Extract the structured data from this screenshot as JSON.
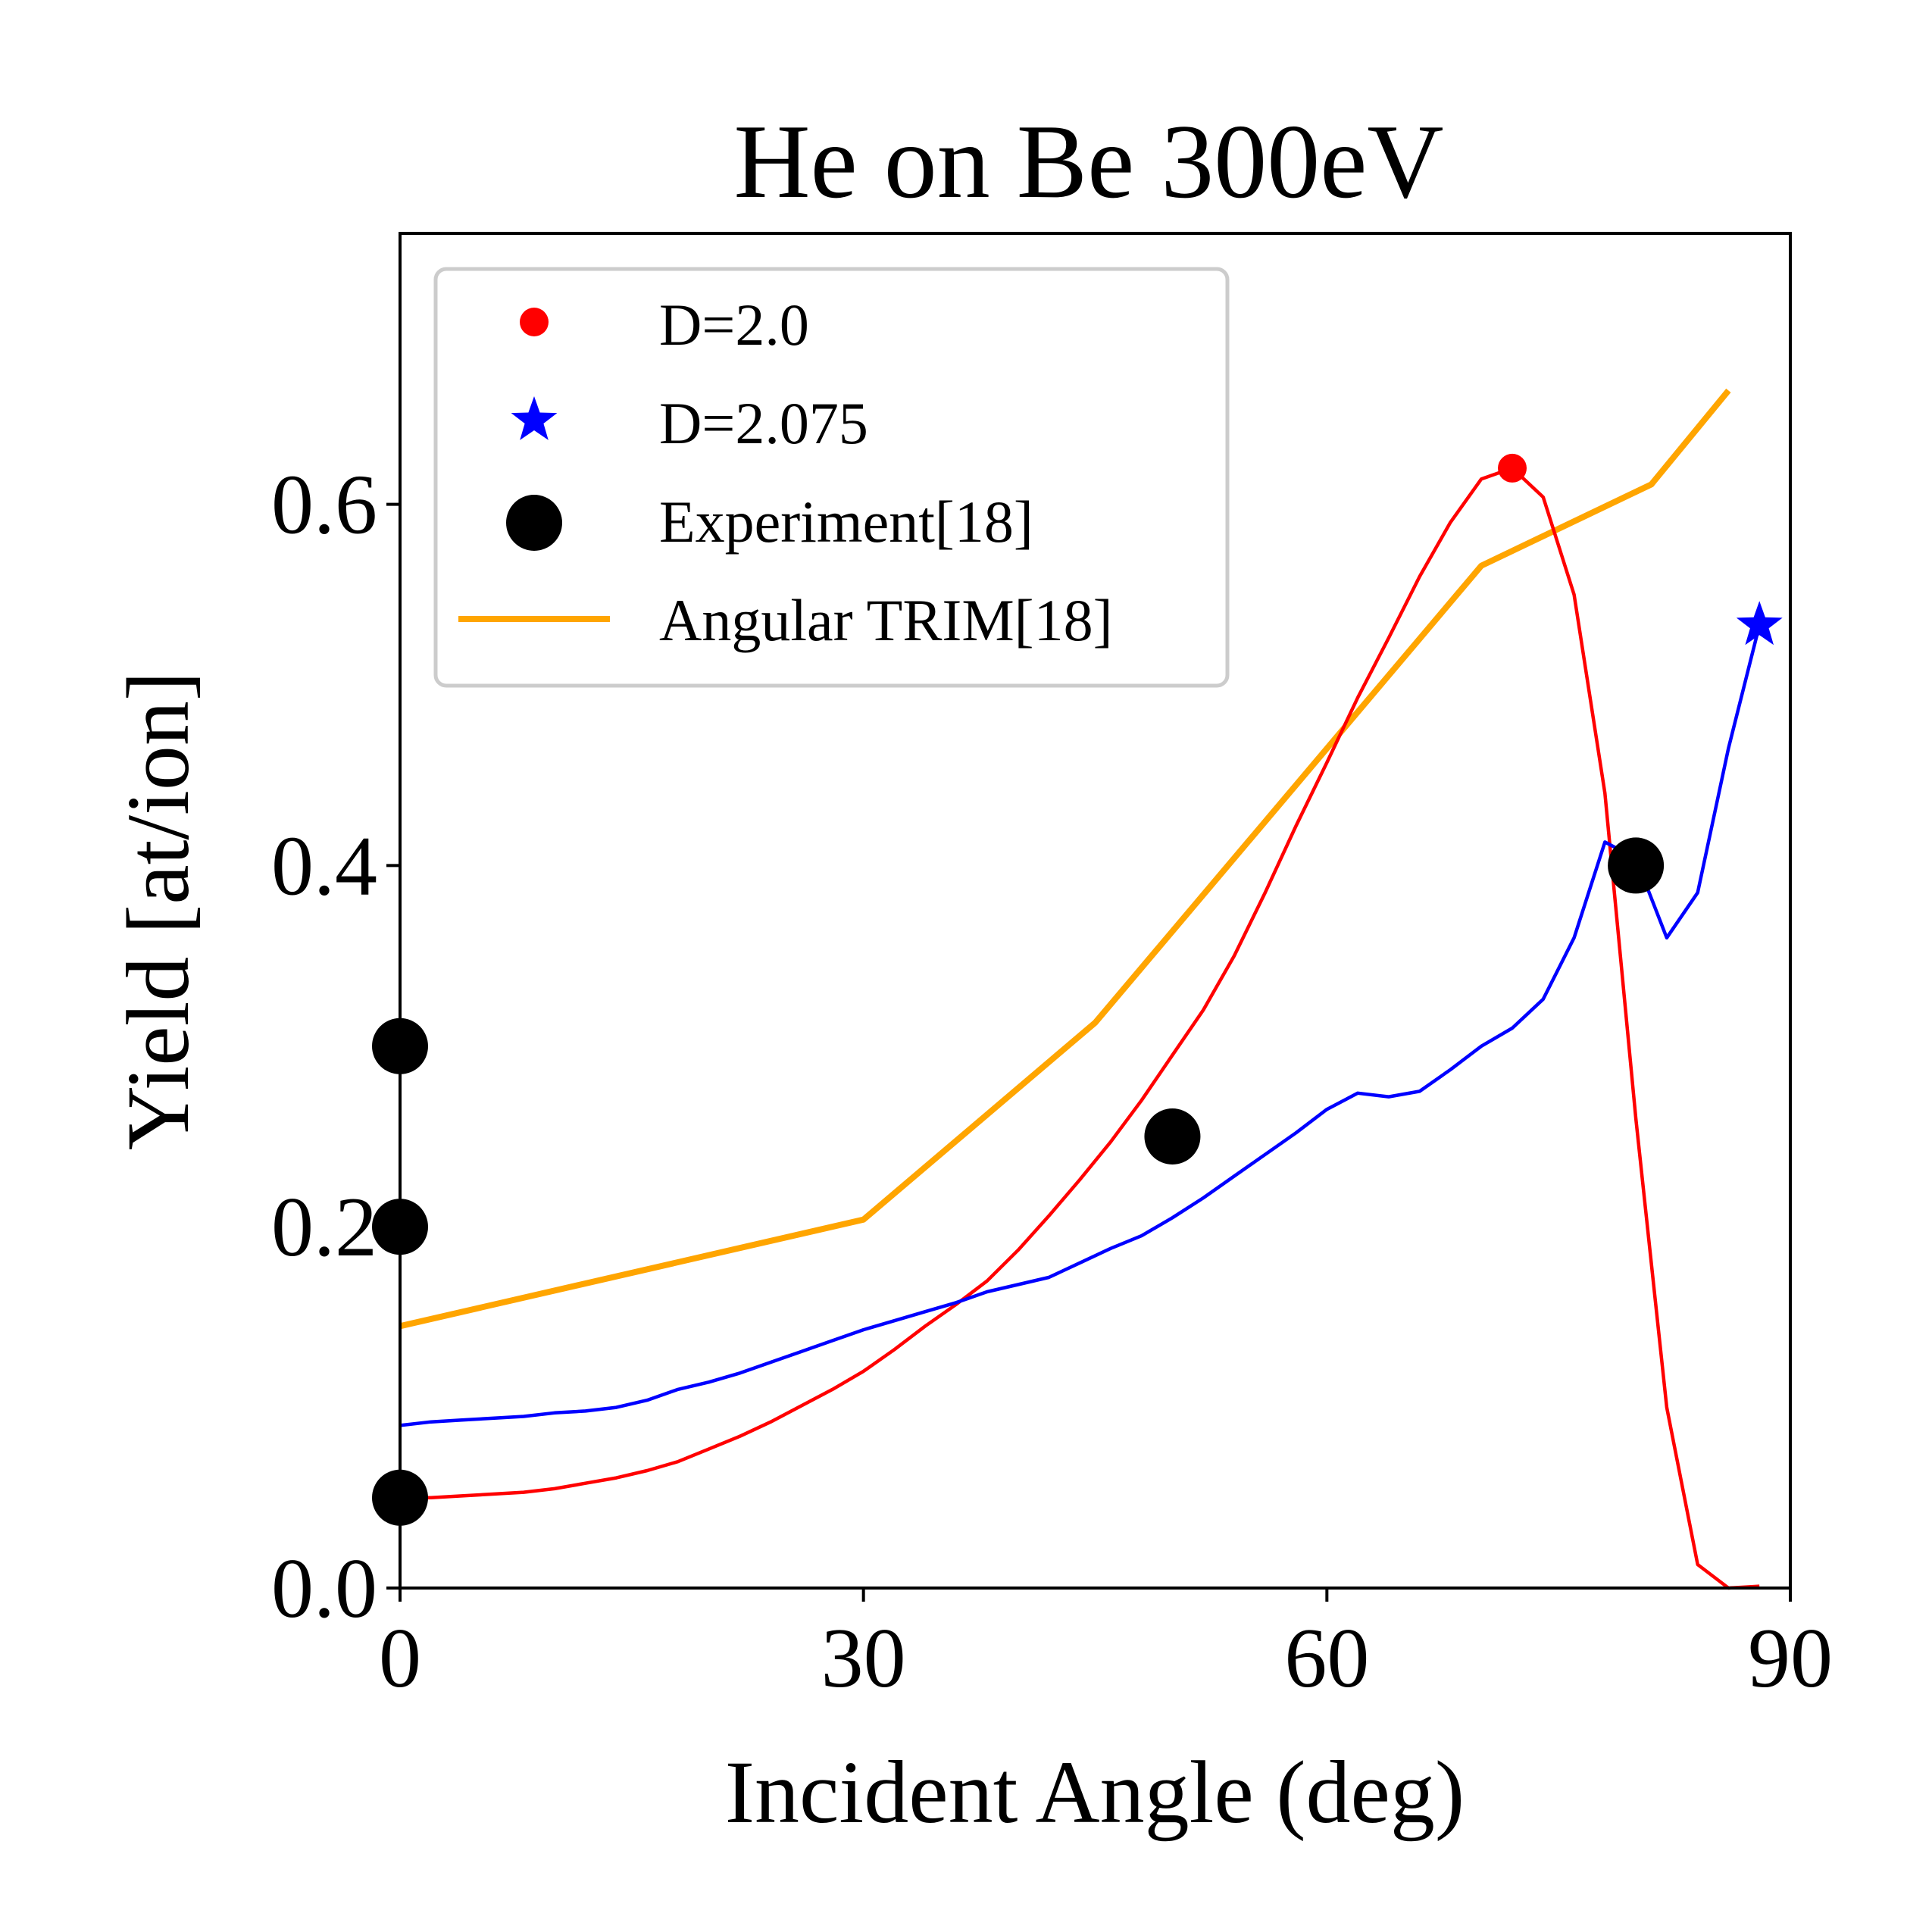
{
  "chart_data": {
    "type": "line",
    "title": "He on Be 300eV",
    "xlabel": "Incident Angle (deg)",
    "ylabel": "Yield [at/ion]",
    "xlim": [
      0,
      90
    ],
    "ylim": [
      0,
      0.75
    ],
    "xticks": [
      0,
      30,
      60,
      90
    ],
    "xtick_labels": [
      "0",
      "30",
      "60",
      "90"
    ],
    "yticks": [
      0.0,
      0.2,
      0.4,
      0.6
    ],
    "ytick_labels": [
      "0.0",
      "0.2",
      "0.4",
      "0.6"
    ],
    "grid": false,
    "legend_position": "top-left",
    "series": [
      {
        "name": "D=2.0",
        "kind": "line",
        "color": "#ff0000",
        "marker": "dot",
        "marker_at": [
          72,
          0.62
        ],
        "x": [
          0,
          2,
          4,
          6,
          8,
          10,
          12,
          14,
          16,
          18,
          20,
          22,
          24,
          26,
          28,
          30,
          32,
          34,
          36,
          38,
          40,
          42,
          44,
          46,
          48,
          50,
          52,
          54,
          56,
          58,
          60,
          62,
          64,
          66,
          68,
          70,
          72,
          74,
          76,
          78,
          80,
          82,
          84,
          86,
          88
        ],
        "y": [
          0.05,
          0.05,
          0.051,
          0.052,
          0.053,
          0.055,
          0.058,
          0.061,
          0.065,
          0.07,
          0.077,
          0.084,
          0.092,
          0.101,
          0.11,
          0.12,
          0.132,
          0.145,
          0.157,
          0.17,
          0.187,
          0.206,
          0.226,
          0.247,
          0.27,
          0.295,
          0.32,
          0.35,
          0.385,
          0.422,
          0.457,
          0.493,
          0.526,
          0.56,
          0.59,
          0.614,
          0.62,
          0.604,
          0.55,
          0.44,
          0.26,
          0.1,
          0.013,
          0.0,
          0.001
        ]
      },
      {
        "name": "D=2.075",
        "kind": "line",
        "color": "#0000ff",
        "marker": "star",
        "marker_at": [
          88,
          0.533
        ],
        "x": [
          0,
          2,
          4,
          6,
          8,
          10,
          12,
          14,
          16,
          18,
          20,
          22,
          24,
          26,
          28,
          30,
          32,
          34,
          36,
          38,
          40,
          42,
          44,
          46,
          48,
          50,
          52,
          54,
          56,
          58,
          60,
          62,
          64,
          66,
          68,
          70,
          72,
          74,
          76,
          78,
          80,
          82,
          84,
          86,
          88
        ],
        "y": [
          0.09,
          0.092,
          0.093,
          0.094,
          0.095,
          0.097,
          0.098,
          0.1,
          0.104,
          0.11,
          0.114,
          0.119,
          0.125,
          0.131,
          0.137,
          0.143,
          0.148,
          0.153,
          0.158,
          0.164,
          0.168,
          0.172,
          0.18,
          0.188,
          0.195,
          0.205,
          0.216,
          0.228,
          0.24,
          0.252,
          0.265,
          0.274,
          0.272,
          0.275,
          0.287,
          0.3,
          0.31,
          0.326,
          0.36,
          0.413,
          0.404,
          0.36,
          0.385,
          0.465,
          0.533
        ]
      },
      {
        "name": "Experiment[18]",
        "kind": "scatter",
        "color": "#000000",
        "x": [
          0,
          0,
          0,
          50,
          80
        ],
        "y": [
          0.05,
          0.2,
          0.3,
          0.25,
          0.4
        ]
      },
      {
        "name": "Angular TRIM[18]",
        "kind": "line",
        "color": "#ffa500",
        "x": [
          0,
          30,
          45,
          70,
          81,
          86
        ],
        "y": [
          0.145,
          0.204,
          0.313,
          0.566,
          0.611,
          0.663
        ]
      }
    ]
  }
}
